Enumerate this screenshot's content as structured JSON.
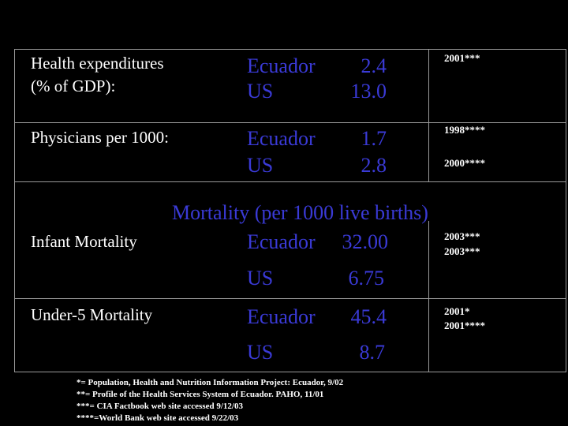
{
  "rows": {
    "health_expenditures": {
      "label_line1": "Health expenditures",
      "label_line2": "(% of GDP):",
      "country1": "Ecuador",
      "value1": "2.4",
      "country2": "US",
      "value2": "13.0",
      "note1": "2001***"
    },
    "physicians": {
      "label": "Physicians per 1000:",
      "country1": "Ecuador",
      "value1": "1.7",
      "country2": "US",
      "value2": "2.8",
      "note1": "1998****",
      "note2": "2000****"
    },
    "mortality_heading": "Mortality (per 1000 live births)",
    "infant_mortality": {
      "label": "Infant Mortality",
      "country1": "Ecuador",
      "value1": "32.00",
      "country2": "US",
      "value2": "6.75",
      "note1": "2003***",
      "note2": "2003***"
    },
    "under5_mortality": {
      "label": "Under-5 Mortality",
      "country1": "Ecuador",
      "value1": "45.4",
      "country2": "US",
      "value2": "8.7",
      "note1": "2001*",
      "note2": "2001****"
    }
  },
  "footnotes": [
    "*= Population, Health and Nutrition Information Project: Ecuador, 9/02",
    "**= Profile of the Health Services System of Ecuador. PAHO, 11/01",
    "***= CIA Factbook web site accessed 9/12/03",
    "****=World Bank web site accessed 9/22/03"
  ],
  "colors": {
    "background": "#000000",
    "label_text": "#ffffff",
    "value_text": "#3a3ad6",
    "grid_lines": "#9a9a9a"
  }
}
